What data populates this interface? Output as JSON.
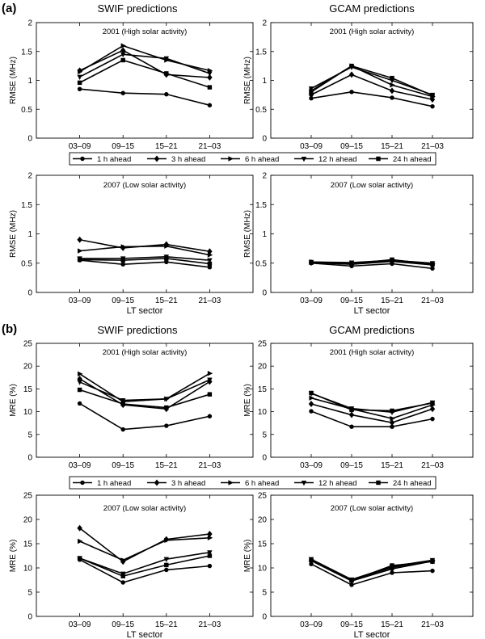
{
  "parts": {
    "a": {
      "label": "(a)",
      "left_title": "SWIF predictions",
      "right_title": "GCAM predictions",
      "ylabel": "RMSE (MHz)"
    },
    "b": {
      "label": "(b)",
      "left_title": "SWIF predictions",
      "right_title": "GCAM predictions",
      "ylabel": "MRE (%)"
    }
  },
  "xlabel": "LT sector",
  "legend": {
    "entries": [
      {
        "label": "1 h ahead",
        "marker": "circle"
      },
      {
        "label": "3 h ahead",
        "marker": "diamond"
      },
      {
        "label": "6 h ahead",
        "marker": "triangle-right"
      },
      {
        "label": "12 h ahead",
        "marker": "triangle-down"
      },
      {
        "label": "24 h ahead",
        "marker": "square"
      }
    ]
  },
  "chart_data": [
    {
      "id": "a-swif-2001",
      "type": "line",
      "model": "SWIF",
      "part": "a",
      "title": "2001 (High solar activity)",
      "xlabel": "",
      "ylabel": "RMSE (MHz)",
      "categories": [
        "03–09",
        "09–15",
        "15–21",
        "21–03"
      ],
      "ylim": [
        0,
        2
      ],
      "yticks": [
        "0",
        "0.5",
        "1",
        "1.5",
        "2"
      ],
      "series": [
        {
          "name": "1 h ahead",
          "values": [
            0.85,
            0.78,
            0.76,
            0.57
          ]
        },
        {
          "name": "3 h ahead",
          "values": [
            1.17,
            1.52,
            1.1,
            1.05
          ]
        },
        {
          "name": "6 h ahead",
          "values": [
            1.15,
            1.6,
            1.35,
            1.17
          ]
        },
        {
          "name": "12 h ahead",
          "values": [
            1.06,
            1.45,
            1.38,
            1.12
          ]
        },
        {
          "name": "24 h ahead",
          "values": [
            0.96,
            1.35,
            1.12,
            0.88
          ]
        }
      ]
    },
    {
      "id": "a-gcam-2001",
      "type": "line",
      "model": "GCAM",
      "part": "a",
      "title": "2001 (High solar activity)",
      "xlabel": "",
      "ylabel": "RMSE (MHz)",
      "categories": [
        "03–09",
        "09–15",
        "15–21",
        "21–03"
      ],
      "ylim": [
        0,
        2
      ],
      "yticks": [
        "0",
        "0.5",
        "1",
        "1.5",
        "2"
      ],
      "series": [
        {
          "name": "1 h ahead",
          "values": [
            0.69,
            0.8,
            0.7,
            0.55
          ]
        },
        {
          "name": "3 h ahead",
          "values": [
            0.75,
            1.1,
            0.82,
            0.67
          ]
        },
        {
          "name": "6 h ahead",
          "values": [
            0.82,
            1.25,
            0.92,
            0.72
          ]
        },
        {
          "name": "12 h ahead",
          "values": [
            0.86,
            1.23,
            1.0,
            0.75
          ]
        },
        {
          "name": "24 h ahead",
          "values": [
            0.8,
            1.25,
            1.04,
            0.74
          ]
        }
      ]
    },
    {
      "id": "a-swif-2007",
      "type": "line",
      "model": "SWIF",
      "part": "a",
      "title": "2007 (Low solar activity)",
      "xlabel": "LT sector",
      "ylabel": "RMSE (MHz)",
      "categories": [
        "03–09",
        "09–15",
        "15–21",
        "21–03"
      ],
      "ylim": [
        0,
        2
      ],
      "yticks": [
        "0",
        "0.5",
        "1",
        "1.5",
        "2"
      ],
      "series": [
        {
          "name": "1 h ahead",
          "values": [
            0.55,
            0.48,
            0.52,
            0.43
          ]
        },
        {
          "name": "3 h ahead",
          "values": [
            0.9,
            0.76,
            0.82,
            0.7
          ]
        },
        {
          "name": "6 h ahead",
          "values": [
            0.71,
            0.78,
            0.79,
            0.64
          ]
        },
        {
          "name": "12 h ahead",
          "values": [
            0.58,
            0.58,
            0.61,
            0.55
          ]
        },
        {
          "name": "24 h ahead",
          "values": [
            0.56,
            0.55,
            0.58,
            0.49
          ]
        }
      ]
    },
    {
      "id": "a-gcam-2007",
      "type": "line",
      "model": "GCAM",
      "part": "a",
      "title": "2007 (Low solar activity)",
      "xlabel": "LT sector",
      "ylabel": "RMSE (MHz)",
      "categories": [
        "03–09",
        "09–15",
        "15–21",
        "21–03"
      ],
      "ylim": [
        0,
        2
      ],
      "yticks": [
        "0",
        "0.5",
        "1",
        "1.5",
        "2"
      ],
      "series": [
        {
          "name": "1 h ahead",
          "values": [
            0.5,
            0.45,
            0.49,
            0.41
          ]
        },
        {
          "name": "3 h ahead",
          "values": [
            0.51,
            0.48,
            0.53,
            0.47
          ]
        },
        {
          "name": "6 h ahead",
          "values": [
            0.52,
            0.5,
            0.54,
            0.49
          ]
        },
        {
          "name": "12 h ahead",
          "values": [
            0.52,
            0.51,
            0.55,
            0.5
          ]
        },
        {
          "name": "24 h ahead",
          "values": [
            0.51,
            0.49,
            0.56,
            0.48
          ]
        }
      ]
    },
    {
      "id": "b-swif-2001",
      "type": "line",
      "model": "SWIF",
      "part": "b",
      "title": "2001 (High solar activity)",
      "xlabel": "",
      "ylabel": "MRE (%)",
      "categories": [
        "03–09",
        "09–15",
        "15–21",
        "21–03"
      ],
      "ylim": [
        0,
        25
      ],
      "yticks": [
        "0",
        "5",
        "10",
        "15",
        "20",
        "25"
      ],
      "series": [
        {
          "name": "1 h ahead",
          "values": [
            11.8,
            6.1,
            6.9,
            9.0
          ]
        },
        {
          "name": "3 h ahead",
          "values": [
            17.2,
            11.5,
            10.6,
            16.6
          ]
        },
        {
          "name": "6 h ahead",
          "values": [
            18.3,
            12.2,
            12.8,
            18.4
          ]
        },
        {
          "name": "12 h ahead",
          "values": [
            16.5,
            12.5,
            12.8,
            17.0
          ]
        },
        {
          "name": "24 h ahead",
          "values": [
            14.8,
            11.7,
            10.9,
            13.8
          ]
        }
      ]
    },
    {
      "id": "b-gcam-2001",
      "type": "line",
      "model": "GCAM",
      "part": "b",
      "title": "2001 (High solar activity)",
      "xlabel": "",
      "ylabel": "MRE (%)",
      "categories": [
        "03–09",
        "09–15",
        "15–21",
        "21–03"
      ],
      "ylim": [
        0,
        25
      ],
      "yticks": [
        "0",
        "5",
        "10",
        "15",
        "20",
        "25"
      ],
      "series": [
        {
          "name": "1 h ahead",
          "values": [
            10.1,
            6.7,
            6.7,
            8.4
          ]
        },
        {
          "name": "3 h ahead",
          "values": [
            11.7,
            9.3,
            7.6,
            10.6
          ]
        },
        {
          "name": "6 h ahead",
          "values": [
            13.0,
            10.6,
            8.5,
            11.5
          ]
        },
        {
          "name": "12 h ahead",
          "values": [
            14.0,
            10.7,
            9.9,
            12.0
          ]
        },
        {
          "name": "24 h ahead",
          "values": [
            14.1,
            10.4,
            10.2,
            11.9
          ]
        }
      ]
    },
    {
      "id": "b-swif-2007",
      "type": "line",
      "model": "SWIF",
      "part": "b",
      "title": "2007 (Low solar activity)",
      "xlabel": "LT sector",
      "ylabel": "MRE (%)",
      "categories": [
        "03–09",
        "09–15",
        "15–21",
        "21–03"
      ],
      "ylim": [
        0,
        25
      ],
      "yticks": [
        "0",
        "5",
        "10",
        "15",
        "20",
        "25"
      ],
      "series": [
        {
          "name": "1 h ahead",
          "values": [
            11.7,
            7.0,
            9.6,
            10.4
          ]
        },
        {
          "name": "3 h ahead",
          "values": [
            18.2,
            11.3,
            15.9,
            17.0
          ]
        },
        {
          "name": "6 h ahead",
          "values": [
            15.5,
            11.6,
            15.7,
            16.2
          ]
        },
        {
          "name": "12 h ahead",
          "values": [
            12.0,
            8.8,
            11.8,
            13.2
          ]
        },
        {
          "name": "24 h ahead",
          "values": [
            12.0,
            8.3,
            10.6,
            12.5
          ]
        }
      ]
    },
    {
      "id": "b-gcam-2007",
      "type": "line",
      "model": "GCAM",
      "part": "b",
      "title": "2007 (Low solar activity)",
      "xlabel": "LT sector",
      "ylabel": "MRE (%)",
      "categories": [
        "03–09",
        "09–15",
        "15–21",
        "21–03"
      ],
      "ylim": [
        0,
        25
      ],
      "yticks": [
        "0",
        "5",
        "10",
        "15",
        "20",
        "25"
      ],
      "series": [
        {
          "name": "1 h ahead",
          "values": [
            10.8,
            6.5,
            9.0,
            9.4
          ]
        },
        {
          "name": "3 h ahead",
          "values": [
            11.5,
            7.3,
            9.8,
            11.4
          ]
        },
        {
          "name": "6 h ahead",
          "values": [
            11.7,
            7.5,
            10.1,
            11.5
          ]
        },
        {
          "name": "12 h ahead",
          "values": [
            11.8,
            7.6,
            10.3,
            11.6
          ]
        },
        {
          "name": "24 h ahead",
          "values": [
            11.6,
            7.4,
            10.5,
            11.3
          ]
        }
      ]
    }
  ]
}
